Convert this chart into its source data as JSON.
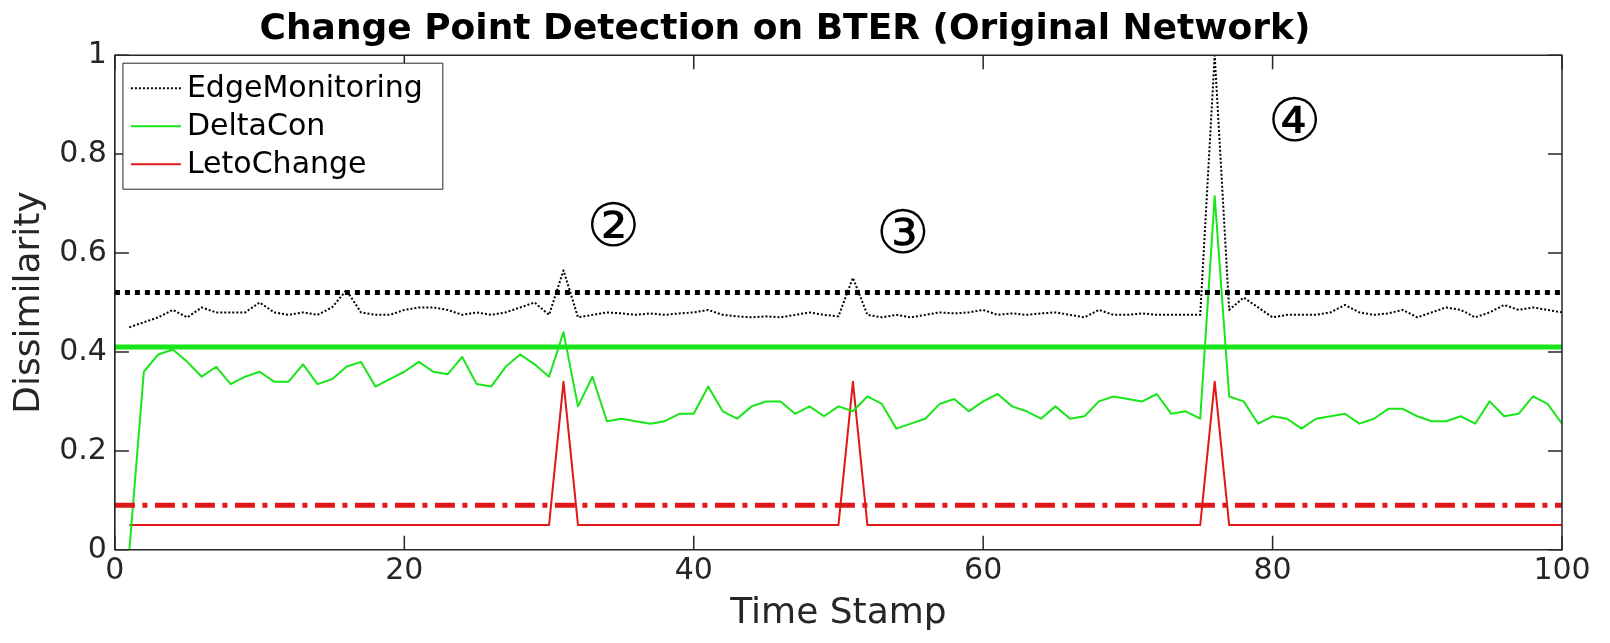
{
  "chart_data": {
    "type": "line",
    "title": "Change Point Detection on BTER (Original Network)",
    "xlabel": "Time Stamp",
    "ylabel": "Dissimilarity",
    "x": [
      1,
      2,
      3,
      4,
      5,
      6,
      7,
      8,
      9,
      10,
      11,
      12,
      13,
      14,
      15,
      16,
      17,
      18,
      19,
      20,
      21,
      22,
      23,
      24,
      25,
      26,
      27,
      28,
      29,
      30,
      31,
      32,
      33,
      34,
      35,
      36,
      37,
      38,
      39,
      40,
      41,
      42,
      43,
      44,
      45,
      46,
      47,
      48,
      49,
      50,
      51,
      52,
      53,
      54,
      55,
      56,
      57,
      58,
      59,
      60,
      61,
      62,
      63,
      64,
      65,
      66,
      67,
      68,
      69,
      70,
      71,
      72,
      73,
      74,
      75,
      76,
      77,
      78,
      79,
      80,
      81,
      82,
      83,
      84,
      85,
      86,
      87,
      88,
      89,
      90,
      91,
      92,
      93,
      94,
      95,
      96,
      97,
      98,
      99,
      100
    ],
    "series": [
      {
        "name": "EdgeMonitoring",
        "color": "#000000",
        "line_style": "dotted",
        "values": [
          0.45,
          0.46,
          0.47,
          0.485,
          0.47,
          0.49,
          0.48,
          0.48,
          0.48,
          0.5,
          0.48,
          0.475,
          0.48,
          0.475,
          0.49,
          0.525,
          0.48,
          0.475,
          0.475,
          0.485,
          0.49,
          0.49,
          0.485,
          0.475,
          0.48,
          0.475,
          0.48,
          0.49,
          0.5,
          0.475,
          0.565,
          0.47,
          0.475,
          0.48,
          0.478,
          0.475,
          0.478,
          0.475,
          0.478,
          0.48,
          0.485,
          0.475,
          0.472,
          0.47,
          0.472,
          0.47,
          0.475,
          0.48,
          0.475,
          0.472,
          0.55,
          0.475,
          0.47,
          0.475,
          0.47,
          0.475,
          0.48,
          0.478,
          0.48,
          0.485,
          0.475,
          0.478,
          0.475,
          0.478,
          0.48,
          0.475,
          0.47,
          0.485,
          0.475,
          0.475,
          0.478,
          0.475,
          0.475,
          0.475,
          0.475,
          1.0,
          0.485,
          0.51,
          0.49,
          0.47,
          0.475,
          0.475,
          0.475,
          0.48,
          0.495,
          0.48,
          0.475,
          0.478,
          0.485,
          0.47,
          0.48,
          0.49,
          0.485,
          0.47,
          0.48,
          0.495,
          0.485,
          0.49,
          0.485,
          0.48
        ]
      },
      {
        "name": "DeltaCon",
        "color": "#19e619",
        "line_style": "solid",
        "values": [
          0,
          0.36,
          0.395,
          0.405,
          0.38,
          0.35,
          0.37,
          0.335,
          0.35,
          0.36,
          0.34,
          0.34,
          0.375,
          0.335,
          0.345,
          0.37,
          0.38,
          0.33,
          0.345,
          0.36,
          0.38,
          0.36,
          0.355,
          0.39,
          0.335,
          0.33,
          0.37,
          0.395,
          0.375,
          0.35,
          0.44,
          0.29,
          0.35,
          0.26,
          0.265,
          0.26,
          0.255,
          0.26,
          0.275,
          0.275,
          0.33,
          0.28,
          0.265,
          0.29,
          0.3,
          0.3,
          0.275,
          0.29,
          0.27,
          0.29,
          0.28,
          0.31,
          0.295,
          0.245,
          0.255,
          0.265,
          0.295,
          0.305,
          0.28,
          0.3,
          0.315,
          0.29,
          0.28,
          0.265,
          0.29,
          0.265,
          0.27,
          0.3,
          0.31,
          0.305,
          0.3,
          0.315,
          0.275,
          0.28,
          0.265,
          0.715,
          0.31,
          0.3,
          0.255,
          0.27,
          0.265,
          0.245,
          0.265,
          0.27,
          0.275,
          0.255,
          0.265,
          0.285,
          0.285,
          0.27,
          0.26,
          0.26,
          0.27,
          0.255,
          0.3,
          0.27,
          0.275,
          0.31,
          0.295,
          0.255
        ]
      },
      {
        "name": "LetoChange",
        "color": "#e01818",
        "line_style": "solid",
        "values": [
          0.05,
          0.05,
          0.05,
          0.05,
          0.05,
          0.05,
          0.05,
          0.05,
          0.05,
          0.05,
          0.05,
          0.05,
          0.05,
          0.05,
          0.05,
          0.05,
          0.05,
          0.05,
          0.05,
          0.05,
          0.05,
          0.05,
          0.05,
          0.05,
          0.05,
          0.05,
          0.05,
          0.05,
          0.05,
          0.05,
          0.34,
          0.05,
          0.05,
          0.05,
          0.05,
          0.05,
          0.05,
          0.05,
          0.05,
          0.05,
          0.05,
          0.05,
          0.05,
          0.05,
          0.05,
          0.05,
          0.05,
          0.05,
          0.05,
          0.05,
          0.34,
          0.05,
          0.05,
          0.05,
          0.05,
          0.05,
          0.05,
          0.05,
          0.05,
          0.05,
          0.05,
          0.05,
          0.05,
          0.05,
          0.05,
          0.05,
          0.05,
          0.05,
          0.05,
          0.05,
          0.05,
          0.05,
          0.05,
          0.05,
          0.05,
          0.34,
          0.05,
          0.05,
          0.05,
          0.05,
          0.05,
          0.05,
          0.05,
          0.05,
          0.05,
          0.05,
          0.05,
          0.05,
          0.05,
          0.05,
          0.05,
          0.05,
          0.05,
          0.05,
          0.05,
          0.05,
          0.05,
          0.05,
          0.05,
          0.05
        ]
      }
    ],
    "ref_lines": [
      {
        "axis": "y",
        "value": 0.52,
        "color": "#000000",
        "line_style": "dotted"
      },
      {
        "axis": "y",
        "value": 0.41,
        "color": "#19e619",
        "line_style": "solid"
      },
      {
        "axis": "y",
        "value": 0.09,
        "color": "#e01818",
        "line_style": "dashed"
      }
    ],
    "annotations": [
      {
        "text": "②",
        "x": 31,
        "y": 0.565
      },
      {
        "text": "③",
        "x": 51,
        "y": 0.55
      },
      {
        "text": "④",
        "x": 76,
        "y": 1.0
      }
    ],
    "xlim": [
      0,
      100
    ],
    "xticks": [
      0,
      20,
      40,
      60,
      80,
      100
    ],
    "ylim": [
      0,
      1
    ],
    "yticks": [
      0,
      0.2,
      0.4,
      0.6,
      0.8,
      1
    ],
    "grid": false,
    "legend": "top left",
    "marker": "none"
  }
}
